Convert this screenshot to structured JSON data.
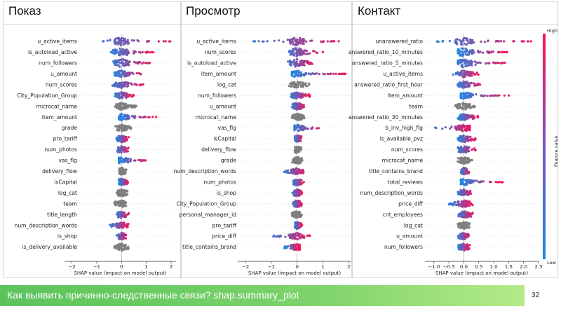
{
  "footer": {
    "text": "Как выявить причинно-следственные связи? shap.summary_plot",
    "page_number": "32"
  },
  "colorbar": {
    "high_label": "High",
    "low_label": "Low",
    "title": "Feature value",
    "low_color": "#1e88e5",
    "high_color": "#ff0d57"
  },
  "colors": {
    "neutral": "#7f7f7f",
    "low": "#1e88e5",
    "high": "#ff0d57"
  },
  "chart_data": [
    {
      "type": "scatter",
      "title": "Показ",
      "xlabel": "SHAP value (impact on model output)",
      "xlim": [
        -2.3,
        2.2
      ],
      "xticks": [
        -2,
        -1,
        0,
        1,
        2
      ],
      "xtick_labels": [
        "−2",
        "−1",
        "0",
        "1",
        "2"
      ],
      "features": [
        {
          "name": "u_active_items",
          "spread": [
            -1.0,
            2.2
          ],
          "color": "mixed"
        },
        {
          "name": "is_autoload_active",
          "spread": [
            -0.5,
            1.3
          ],
          "color": "mixed"
        },
        {
          "name": "num_followers",
          "spread": [
            -0.4,
            1.2
          ],
          "color": "mixed"
        },
        {
          "name": "u_amount",
          "spread": [
            -0.3,
            0.9
          ],
          "color": "mixed"
        },
        {
          "name": "num_scores",
          "spread": [
            -0.4,
            0.9
          ],
          "color": "mixed"
        },
        {
          "name": "City_Population_Group",
          "spread": [
            -0.3,
            0.5
          ],
          "color": "mixed"
        },
        {
          "name": "microcat_name",
          "spread": [
            -0.3,
            0.6
          ],
          "color": "neutral"
        },
        {
          "name": "item_amount",
          "spread": [
            -0.1,
            1.4
          ],
          "color": "mixed"
        },
        {
          "name": "grade",
          "spread": [
            -0.3,
            0.4
          ],
          "color": "neutral"
        },
        {
          "name": "pro_tariff",
          "spread": [
            -0.2,
            0.3
          ],
          "color": "mixed"
        },
        {
          "name": "num_photos",
          "spread": [
            -0.2,
            0.3
          ],
          "color": "mixed"
        },
        {
          "name": "vas_flg",
          "spread": [
            -0.1,
            1.1
          ],
          "color": "mixed"
        },
        {
          "name": "delivery_flow",
          "spread": [
            -0.1,
            0.2
          ],
          "color": "neutral"
        },
        {
          "name": "isCapital",
          "spread": [
            -0.1,
            0.3
          ],
          "color": "mixed"
        },
        {
          "name": "log_cat",
          "spread": [
            -0.2,
            0.3
          ],
          "color": "neutral"
        },
        {
          "name": "team",
          "spread": [
            -0.3,
            0.2
          ],
          "color": "neutral"
        },
        {
          "name": "title_length",
          "spread": [
            -0.2,
            0.3
          ],
          "color": "mixed"
        },
        {
          "name": "num_description_words",
          "spread": [
            -0.5,
            0.3
          ],
          "color": "mixed"
        },
        {
          "name": "is_shop",
          "spread": [
            -0.2,
            0.2
          ],
          "color": "mixed"
        },
        {
          "name": "is_delivery_available",
          "spread": [
            -0.3,
            0.3
          ],
          "color": "neutral"
        }
      ]
    },
    {
      "type": "scatter",
      "title": "Просмотр",
      "xlabel": "SHAP value (impact on model output)",
      "xlim": [
        -2.3,
        2.1
      ],
      "xticks": [
        -2,
        -1,
        0,
        1,
        2
      ],
      "xtick_labels": [
        "−2",
        "−1",
        "0",
        "1",
        "2"
      ],
      "features": [
        {
          "name": "u_active_items",
          "spread": [
            -1.8,
            1.8
          ],
          "color": "mixed"
        },
        {
          "name": "num_scores",
          "spread": [
            -0.6,
            1.0
          ],
          "color": "mixed"
        },
        {
          "name": "is_autoload_active",
          "spread": [
            -0.4,
            0.6
          ],
          "color": "mixed"
        },
        {
          "name": "item_amount",
          "spread": [
            -0.2,
            2.0
          ],
          "color": "mixed"
        },
        {
          "name": "log_cat",
          "spread": [
            -0.4,
            0.5
          ],
          "color": "neutral"
        },
        {
          "name": "num_followers",
          "spread": [
            -0.3,
            0.5
          ],
          "color": "mixed"
        },
        {
          "name": "u_amount",
          "spread": [
            -0.2,
            0.3
          ],
          "color": "mixed"
        },
        {
          "name": "microcat_name",
          "spread": [
            -0.3,
            0.3
          ],
          "color": "neutral"
        },
        {
          "name": "vas_flg",
          "spread": [
            -0.1,
            1.0
          ],
          "color": "mixed"
        },
        {
          "name": "isCapital",
          "spread": [
            -0.1,
            0.2
          ],
          "color": "mixed"
        },
        {
          "name": "delivery_flow",
          "spread": [
            -0.1,
            0.2
          ],
          "color": "neutral"
        },
        {
          "name": "grade",
          "spread": [
            -0.2,
            0.2
          ],
          "color": "neutral"
        },
        {
          "name": "num_description_words",
          "spread": [
            -0.5,
            0.3
          ],
          "color": "mixed"
        },
        {
          "name": "num_photos",
          "spread": [
            -0.2,
            0.3
          ],
          "color": "mixed"
        },
        {
          "name": "is_shop",
          "spread": [
            -0.2,
            0.2
          ],
          "color": "mixed"
        },
        {
          "name": "City_Population_Group",
          "spread": [
            -0.2,
            0.2
          ],
          "color": "mixed"
        },
        {
          "name": "personal_manager_id",
          "spread": [
            -0.2,
            0.2
          ],
          "color": "neutral"
        },
        {
          "name": "pro_tariff",
          "spread": [
            -0.1,
            0.2
          ],
          "color": "mixed"
        },
        {
          "name": "price_diff",
          "spread": [
            -1.0,
            0.5
          ],
          "color": "mixed"
        },
        {
          "name": "title_contains_brand",
          "spread": [
            -0.5,
            0.1
          ],
          "color": "mixed"
        }
      ]
    },
    {
      "type": "scatter",
      "title": "Контакт",
      "xlabel": "SHAP value (impact on model output)",
      "xlim": [
        -1.3,
        2.5
      ],
      "xticks": [
        -1.0,
        -0.5,
        0.0,
        0.5,
        1.0,
        1.5,
        2.0,
        2.5
      ],
      "xtick_labels": [
        "−1.0",
        "−0.5",
        "0.0",
        "0.5",
        "1.0",
        "1.5",
        "2.0",
        "2.5"
      ],
      "features": [
        {
          "name": "unanswered_ratio",
          "spread": [
            -0.9,
            2.3
          ],
          "color": "mixed"
        },
        {
          "name": "answered_ratio_10_minutes",
          "spread": [
            -0.2,
            1.5
          ],
          "color": "mixed"
        },
        {
          "name": "answered_ratio_5_minutes",
          "spread": [
            -0.2,
            1.4
          ],
          "color": "mixed"
        },
        {
          "name": "u_active_items",
          "spread": [
            -0.4,
            0.5
          ],
          "color": "mixed"
        },
        {
          "name": "answered_ratio_first_hour",
          "spread": [
            -0.2,
            0.6
          ],
          "color": "mixed"
        },
        {
          "name": "item_amount",
          "spread": [
            -0.1,
            1.6
          ],
          "color": "mixed"
        },
        {
          "name": "team",
          "spread": [
            -0.3,
            0.4
          ],
          "color": "neutral"
        },
        {
          "name": "answered_ratio_30_minutes",
          "spread": [
            -0.2,
            0.5
          ],
          "color": "mixed"
        },
        {
          "name": "b_inv_high_flg",
          "spread": [
            -1.0,
            0.2
          ],
          "color": "mixed"
        },
        {
          "name": "is_available_pvz",
          "spread": [
            -0.2,
            0.4
          ],
          "color": "mixed"
        },
        {
          "name": "num_scores",
          "spread": [
            -0.2,
            0.4
          ],
          "color": "mixed"
        },
        {
          "name": "microcat_name",
          "spread": [
            -0.2,
            0.3
          ],
          "color": "neutral"
        },
        {
          "name": "title_contains_brand",
          "spread": [
            -0.1,
            0.2
          ],
          "color": "mixed"
        },
        {
          "name": "total_reviews",
          "spread": [
            -0.1,
            1.3
          ],
          "color": "mixed"
        },
        {
          "name": "num_description_words",
          "spread": [
            -0.2,
            0.3
          ],
          "color": "mixed"
        },
        {
          "name": "price_diff",
          "spread": [
            -0.5,
            0.3
          ],
          "color": "mixed"
        },
        {
          "name": "cnt_employees",
          "spread": [
            -0.2,
            0.3
          ],
          "color": "mixed"
        },
        {
          "name": "log_cat",
          "spread": [
            -0.2,
            0.2
          ],
          "color": "neutral"
        },
        {
          "name": "u_amount",
          "spread": [
            -0.2,
            0.2
          ],
          "color": "mixed"
        },
        {
          "name": "num_followers",
          "spread": [
            -0.2,
            0.2
          ],
          "color": "mixed"
        }
      ]
    }
  ]
}
